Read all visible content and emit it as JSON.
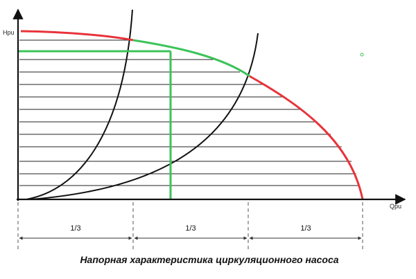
{
  "axes": {
    "y_label": "Hpu",
    "x_label": "Qpu"
  },
  "segments": [
    "1/3",
    "1/3",
    "1/3"
  ],
  "caption": "Напорная характеристика циркуляционного насоса",
  "colors": {
    "pump_curve": "#e8333a",
    "operating_range": "#3cc35a",
    "system_curves": "#111111",
    "hatch_lines": "#222222",
    "axes": "#111111",
    "dim_lines": "#555555"
  }
}
